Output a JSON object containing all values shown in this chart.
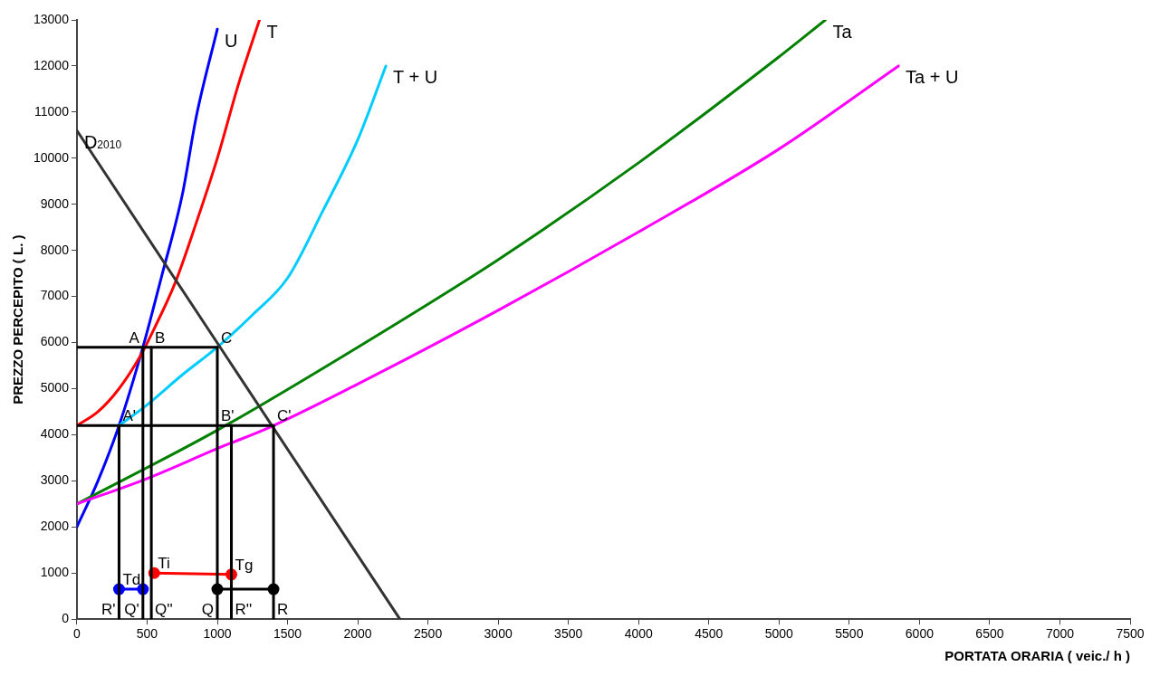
{
  "chart_data": {
    "type": "line",
    "xlabel": "PORTATA ORARIA ( veic./ h )",
    "ylabel": "PREZZO PERCEPITO ( L. )",
    "xlim": [
      0,
      7500
    ],
    "xticks": [
      0,
      500,
      1000,
      1500,
      2000,
      2500,
      3000,
      3500,
      4000,
      4500,
      5000,
      5500,
      6000,
      6500,
      7000,
      7500
    ],
    "ylim": [
      0,
      13000
    ],
    "yticks": [
      0,
      1000,
      2000,
      3000,
      4000,
      5000,
      6000,
      7000,
      8000,
      9000,
      10000,
      11000,
      12000,
      13000
    ],
    "grid": false,
    "legend": false,
    "marker": "none",
    "line_style": "solid",
    "series": [
      {
        "x": [
          0,
          1000
        ],
        "values": [
          5900,
          5900
        ],
        "color": "#000000"
      },
      {
        "x": [
          0,
          1400
        ],
        "values": [
          4200,
          4200
        ],
        "color": "#000000"
      },
      {
        "x": [
          300,
          300
        ],
        "values": [
          0,
          4200
        ],
        "color": "#000000"
      },
      {
        "x": [
          470,
          470
        ],
        "values": [
          0,
          5900
        ],
        "color": "#000000"
      },
      {
        "x": [
          530,
          530
        ],
        "values": [
          0,
          5900
        ],
        "color": "#000000"
      },
      {
        "x": [
          1000,
          1000
        ],
        "values": [
          0,
          5900
        ],
        "color": "#000000"
      },
      {
        "x": [
          1100,
          1100
        ],
        "values": [
          0,
          4200
        ],
        "color": "#000000"
      },
      {
        "x": [
          1400,
          1400
        ],
        "values": [
          0,
          4200
        ],
        "color": "#000000"
      },
      {
        "name": "D$_{2010}$",
        "x": [
          0,
          2300
        ],
        "values": [
          10600,
          0
        ],
        "color": "#333333"
      },
      {
        "name": "Ta + U",
        "x": [
          0,
          500,
          1000,
          1400,
          2000,
          3000,
          4000,
          5000,
          5850
        ],
        "values": [
          2500,
          3050,
          3700,
          4200,
          5100,
          6700,
          8400,
          10200,
          12000
        ],
        "color": "#ff00ff"
      },
      {
        "name": "Ta",
        "x": [
          0,
          1000,
          2000,
          3000,
          4000,
          5000,
          5330
        ],
        "values": [
          2500,
          4100,
          5900,
          7800,
          9900,
          12200,
          13000
        ],
        "color": "#008000"
      },
      {
        "name": "T + U",
        "x": [
          300,
          500,
          750,
          1000,
          1250,
          1500,
          1750,
          2000,
          2200
        ],
        "values": [
          4200,
          4650,
          5300,
          5900,
          6600,
          7400,
          8850,
          10400,
          12000
        ],
        "color": "#00ccff"
      },
      {
        "name": "T",
        "x": [
          0,
          150,
          300,
          450,
          550,
          700,
          850,
          1000,
          1150,
          1300
        ],
        "values": [
          4200,
          4500,
          5000,
          5700,
          6300,
          7300,
          8600,
          10000,
          11600,
          13000
        ],
        "color": "#ff0000"
      },
      {
        "name": "U",
        "x": [
          0,
          150,
          300,
          470,
          600,
          750,
          850,
          1000
        ],
        "values": [
          2000,
          3000,
          4200,
          5900,
          7400,
          9200,
          10900,
          12800
        ],
        "color": "#0000ff"
      },
      {
        "x": [
          300,
          470
        ],
        "values": [
          650,
          650
        ],
        "color": "#0000ff",
        "marker": "circle"
      },
      {
        "x": [
          550,
          1100
        ],
        "values": [
          1000,
          970
        ],
        "color": "#ff0000",
        "marker": "circle"
      },
      {
        "x": [
          1000,
          1400
        ],
        "values": [
          650,
          650
        ],
        "color": "#000000",
        "marker": "circle"
      }
    ],
    "annotations": [
      {
        "text": "A",
        "x": 470,
        "y": 5900
      },
      {
        "text": "B",
        "x": 530,
        "y": 5900
      },
      {
        "text": "C",
        "x": 1000,
        "y": 5900
      },
      {
        "text": "A'",
        "x": 300,
        "y": 4200
      },
      {
        "text": "B'",
        "x": 1000,
        "y": 4200
      },
      {
        "text": "C'",
        "x": 1400,
        "y": 4200
      },
      {
        "text": "Td",
        "x": 300,
        "y": 650
      },
      {
        "text": "Ti",
        "x": 550,
        "y": 1000
      },
      {
        "text": "Tg",
        "x": 1100,
        "y": 970
      },
      {
        "text": "R'",
        "x": 300,
        "y": 0
      },
      {
        "text": "Q'",
        "x": 470,
        "y": 0
      },
      {
        "text": "Q''",
        "x": 530,
        "y": 0
      },
      {
        "text": "Q",
        "x": 1000,
        "y": 0
      },
      {
        "text": "R''",
        "x": 1100,
        "y": 0
      },
      {
        "text": "R",
        "x": 1400,
        "y": 0
      }
    ]
  }
}
